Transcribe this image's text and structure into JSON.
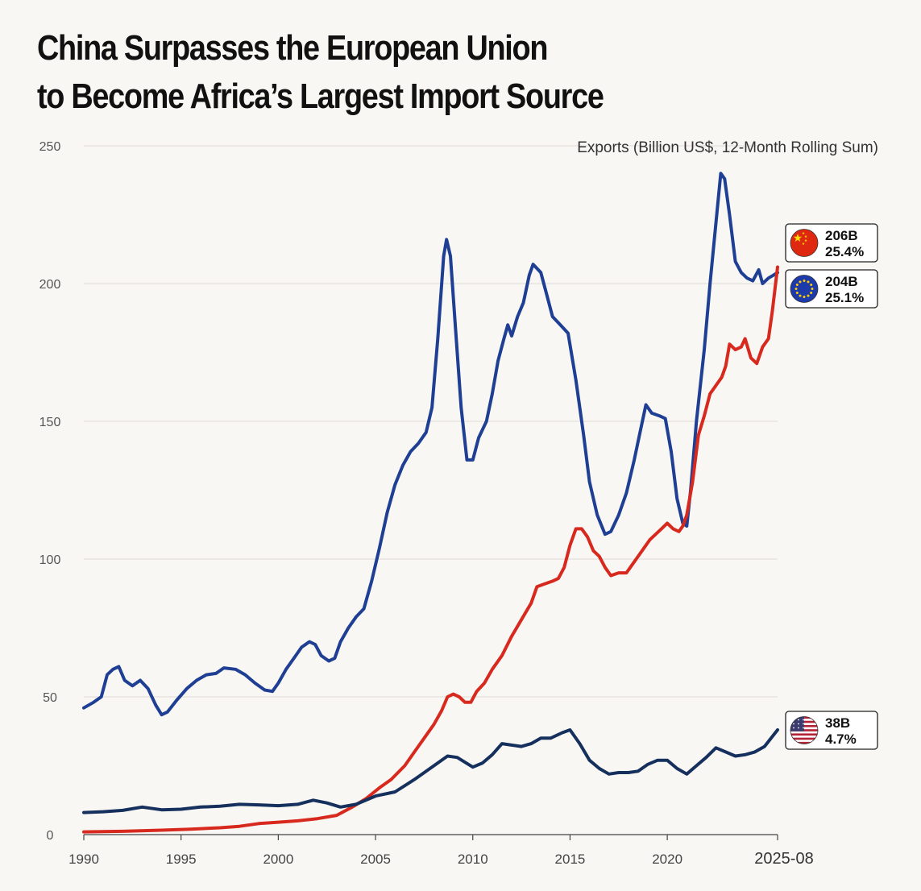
{
  "title": {
    "line1": "China Surpasses the European Union",
    "line2": "to Become Africa’s Largest Import Source"
  },
  "chart_data": {
    "type": "line",
    "units_label": "Exports (Billion US$, 12-Month Rolling Sum)",
    "x_range": [
      1990,
      2025.67
    ],
    "ylim": [
      0,
      250
    ],
    "y_ticks": [
      "0",
      "50",
      "100",
      "150",
      "200",
      "250"
    ],
    "x_ticks": [
      "1990",
      "1995",
      "2000",
      "2005",
      "2010",
      "2015",
      "2020",
      "2025-08"
    ],
    "grid": true,
    "series": [
      {
        "name": "European Union",
        "color": "#1e3f94",
        "points": [
          [
            1990,
            46
          ],
          [
            1990.5,
            48
          ],
          [
            1990.9,
            50
          ],
          [
            1991.2,
            58
          ],
          [
            1991.5,
            60
          ],
          [
            1991.8,
            61
          ],
          [
            1992.1,
            56
          ],
          [
            1992.5,
            54
          ],
          [
            1992.9,
            56
          ],
          [
            1993.3,
            53
          ],
          [
            1993.7,
            47
          ],
          [
            1994.0,
            43.5
          ],
          [
            1994.3,
            44.5
          ],
          [
            1994.8,
            49
          ],
          [
            1995.3,
            53
          ],
          [
            1995.8,
            56
          ],
          [
            1996.3,
            58
          ],
          [
            1996.8,
            58.5
          ],
          [
            1997.2,
            60.5
          ],
          [
            1997.8,
            60
          ],
          [
            1998.3,
            58
          ],
          [
            1998.8,
            55
          ],
          [
            1999.3,
            52.5
          ],
          [
            1999.7,
            52
          ],
          [
            2000.0,
            55
          ],
          [
            2000.4,
            60
          ],
          [
            2000.8,
            64
          ],
          [
            2001.2,
            68
          ],
          [
            2001.6,
            70
          ],
          [
            2001.9,
            69
          ],
          [
            2002.2,
            65
          ],
          [
            2002.6,
            63
          ],
          [
            2002.9,
            64
          ],
          [
            2003.2,
            70
          ],
          [
            2003.6,
            75
          ],
          [
            2004.0,
            79
          ],
          [
            2004.4,
            82
          ],
          [
            2004.8,
            92
          ],
          [
            2005.2,
            104
          ],
          [
            2005.6,
            117
          ],
          [
            2006.0,
            127
          ],
          [
            2006.4,
            134
          ],
          [
            2006.8,
            139
          ],
          [
            2007.2,
            142
          ],
          [
            2007.6,
            146
          ],
          [
            2007.9,
            155
          ],
          [
            2008.2,
            180
          ],
          [
            2008.5,
            210
          ],
          [
            2008.65,
            216
          ],
          [
            2008.85,
            210
          ],
          [
            2009.1,
            185
          ],
          [
            2009.4,
            155
          ],
          [
            2009.7,
            136
          ],
          [
            2010.0,
            136
          ],
          [
            2010.3,
            144
          ],
          [
            2010.7,
            150
          ],
          [
            2011.0,
            160
          ],
          [
            2011.3,
            172
          ],
          [
            2011.6,
            180
          ],
          [
            2011.8,
            185
          ],
          [
            2012.0,
            181
          ],
          [
            2012.3,
            188
          ],
          [
            2012.6,
            193
          ],
          [
            2012.9,
            203
          ],
          [
            2013.1,
            207
          ],
          [
            2013.5,
            204
          ],
          [
            2013.8,
            196
          ],
          [
            2014.1,
            188
          ],
          [
            2014.5,
            185
          ],
          [
            2014.9,
            182
          ],
          [
            2015.3,
            165
          ],
          [
            2015.7,
            145
          ],
          [
            2016.0,
            128
          ],
          [
            2016.4,
            116
          ],
          [
            2016.8,
            109
          ],
          [
            2017.1,
            110
          ],
          [
            2017.5,
            116
          ],
          [
            2017.9,
            124
          ],
          [
            2018.3,
            136
          ],
          [
            2018.6,
            146
          ],
          [
            2018.9,
            156
          ],
          [
            2019.2,
            153
          ],
          [
            2019.6,
            152
          ],
          [
            2019.9,
            151
          ],
          [
            2020.2,
            139
          ],
          [
            2020.5,
            122
          ],
          [
            2020.8,
            113
          ],
          [
            2021.0,
            112
          ],
          [
            2021.2,
            125
          ],
          [
            2021.5,
            150
          ],
          [
            2021.9,
            176
          ],
          [
            2022.2,
            200
          ],
          [
            2022.5,
            222
          ],
          [
            2022.75,
            240
          ],
          [
            2022.95,
            238
          ],
          [
            2023.2,
            225
          ],
          [
            2023.5,
            208
          ],
          [
            2023.8,
            204
          ],
          [
            2024.1,
            202
          ],
          [
            2024.4,
            201
          ],
          [
            2024.7,
            205
          ],
          [
            2024.9,
            200
          ],
          [
            2025.2,
            202
          ],
          [
            2025.45,
            203
          ],
          [
            2025.67,
            204
          ]
        ]
      },
      {
        "name": "China",
        "color": "#d7291e",
        "points": [
          [
            1990,
            1
          ],
          [
            1992,
            1.2
          ],
          [
            1994,
            1.6
          ],
          [
            1995.5,
            2
          ],
          [
            1997,
            2.5
          ],
          [
            1998,
            3
          ],
          [
            1999,
            4
          ],
          [
            2000,
            4.5
          ],
          [
            2001,
            5
          ],
          [
            2002,
            5.8
          ],
          [
            2003,
            7
          ],
          [
            2003.8,
            10
          ],
          [
            2004.5,
            13
          ],
          [
            2005.2,
            17
          ],
          [
            2005.8,
            20
          ],
          [
            2006.5,
            25
          ],
          [
            2007,
            30
          ],
          [
            2007.5,
            35
          ],
          [
            2008,
            40
          ],
          [
            2008.4,
            45
          ],
          [
            2008.7,
            50
          ],
          [
            2009.0,
            51
          ],
          [
            2009.3,
            50
          ],
          [
            2009.6,
            48
          ],
          [
            2009.9,
            48
          ],
          [
            2010.2,
            52
          ],
          [
            2010.6,
            55
          ],
          [
            2011.0,
            60
          ],
          [
            2011.5,
            65
          ],
          [
            2012.0,
            72
          ],
          [
            2012.5,
            78
          ],
          [
            2013.0,
            84
          ],
          [
            2013.3,
            90
          ],
          [
            2013.7,
            91
          ],
          [
            2014.1,
            92
          ],
          [
            2014.4,
            93
          ],
          [
            2014.7,
            97
          ],
          [
            2015.0,
            105
          ],
          [
            2015.3,
            111
          ],
          [
            2015.6,
            111
          ],
          [
            2015.9,
            108
          ],
          [
            2016.2,
            103
          ],
          [
            2016.5,
            101
          ],
          [
            2016.8,
            97
          ],
          [
            2017.1,
            94
          ],
          [
            2017.5,
            95
          ],
          [
            2017.9,
            95
          ],
          [
            2018.2,
            98
          ],
          [
            2018.5,
            101
          ],
          [
            2018.8,
            104
          ],
          [
            2019.1,
            107
          ],
          [
            2019.4,
            109
          ],
          [
            2019.7,
            111
          ],
          [
            2020.0,
            113
          ],
          [
            2020.3,
            111
          ],
          [
            2020.6,
            110
          ],
          [
            2020.8,
            112
          ],
          [
            2021.0,
            116
          ],
          [
            2021.3,
            128
          ],
          [
            2021.6,
            145
          ],
          [
            2021.9,
            152
          ],
          [
            2022.2,
            160
          ],
          [
            2022.5,
            163
          ],
          [
            2022.8,
            166
          ],
          [
            2023.0,
            170
          ],
          [
            2023.2,
            178
          ],
          [
            2023.5,
            176
          ],
          [
            2023.8,
            177
          ],
          [
            2024.0,
            180
          ],
          [
            2024.3,
            173
          ],
          [
            2024.6,
            171
          ],
          [
            2024.9,
            177
          ],
          [
            2025.2,
            180
          ],
          [
            2025.4,
            190
          ],
          [
            2025.67,
            206
          ]
        ]
      },
      {
        "name": "United States",
        "color": "#16305e",
        "points": [
          [
            1990,
            8
          ],
          [
            1991,
            8.3
          ],
          [
            1992,
            8.8
          ],
          [
            1993,
            10
          ],
          [
            1994,
            9
          ],
          [
            1995,
            9.2
          ],
          [
            1996,
            10
          ],
          [
            1997,
            10.3
          ],
          [
            1998,
            11
          ],
          [
            1999,
            10.8
          ],
          [
            2000,
            10.5
          ],
          [
            2001,
            11
          ],
          [
            2001.8,
            12.5
          ],
          [
            2002.5,
            11.5
          ],
          [
            2003.2,
            10
          ],
          [
            2004,
            11
          ],
          [
            2005,
            14
          ],
          [
            2006,
            15.5
          ],
          [
            2007,
            20
          ],
          [
            2008,
            25
          ],
          [
            2008.7,
            28.5
          ],
          [
            2009.2,
            28
          ],
          [
            2010,
            24.5
          ],
          [
            2010.5,
            26
          ],
          [
            2011.0,
            29
          ],
          [
            2011.5,
            33
          ],
          [
            2012.0,
            32.5
          ],
          [
            2012.5,
            32
          ],
          [
            2013.0,
            33
          ],
          [
            2013.5,
            35
          ],
          [
            2014.0,
            35
          ],
          [
            2014.6,
            37
          ],
          [
            2015.0,
            38
          ],
          [
            2015.5,
            33
          ],
          [
            2016.0,
            27
          ],
          [
            2016.5,
            24
          ],
          [
            2017.0,
            22
          ],
          [
            2017.5,
            22.5
          ],
          [
            2018.0,
            22.5
          ],
          [
            2018.5,
            23
          ],
          [
            2019.0,
            25.5
          ],
          [
            2019.5,
            27
          ],
          [
            2020.0,
            27
          ],
          [
            2020.5,
            24
          ],
          [
            2021.0,
            22
          ],
          [
            2021.5,
            25
          ],
          [
            2022.0,
            28
          ],
          [
            2022.5,
            31.5
          ],
          [
            2023.0,
            30
          ],
          [
            2023.5,
            28.5
          ],
          [
            2024.0,
            29
          ],
          [
            2024.5,
            30
          ],
          [
            2025.0,
            32
          ],
          [
            2025.67,
            38
          ]
        ]
      }
    ],
    "callouts": [
      {
        "series": "China",
        "value": "206B",
        "share": "25.4%",
        "flag": "china-flag-icon"
      },
      {
        "series": "European Union",
        "value": "204B",
        "share": "25.1%",
        "flag": "eu-flag-icon"
      },
      {
        "series": "United States",
        "value": "38B",
        "share": "4.7%",
        "flag": "us-flag-icon"
      }
    ]
  }
}
